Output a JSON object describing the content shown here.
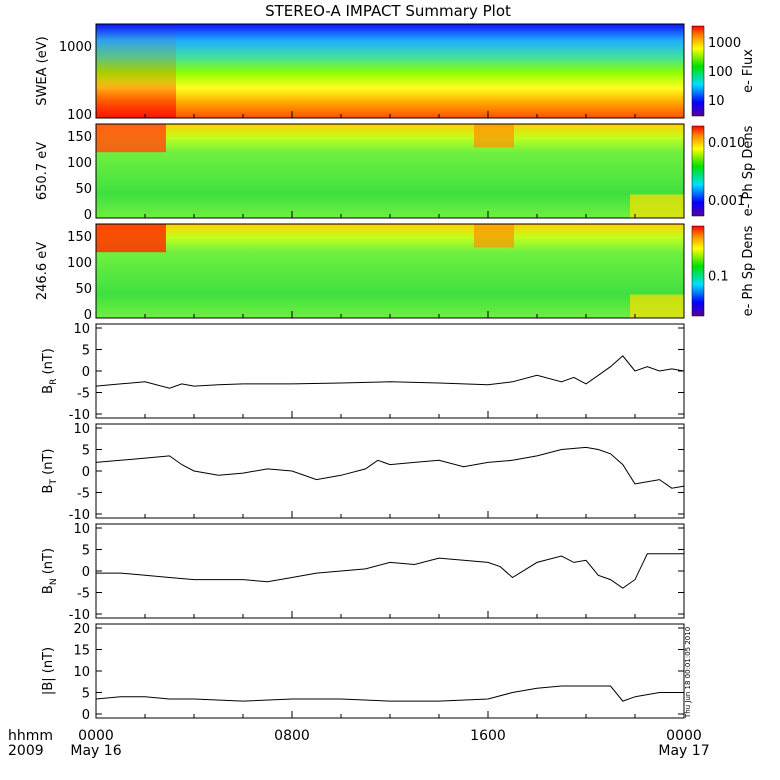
{
  "title": "STEREO-A IMPACT Summary Plot",
  "footer": {
    "time_label": "hhmm",
    "year_label": "2009",
    "x_ticks": [
      "0000",
      "0800",
      "1600",
      "0000"
    ],
    "date_labels": [
      "May 16",
      "May 17"
    ]
  },
  "timestamp": "Thu Jun 18 00:01:05 2010",
  "chart_data": [
    {
      "type": "heatmap",
      "name": "swea",
      "ylabel": "SWEA (eV)",
      "yticks": [
        "1000",
        "100"
      ],
      "colorbar_label": "e- Flux",
      "colorbar_ticks": [
        "1000",
        "100",
        "10"
      ]
    },
    {
      "type": "heatmap",
      "name": "pad650",
      "ylabel": "650.7 eV",
      "yticks": [
        "150",
        "100",
        "50",
        "0"
      ],
      "colorbar_label": "e- Ph Sp Dens",
      "colorbar_ticks": [
        "0.010",
        "0.001"
      ]
    },
    {
      "type": "heatmap",
      "name": "pad246",
      "ylabel": "246.6 eV",
      "yticks": [
        "150",
        "100",
        "50",
        "0"
      ],
      "colorbar_label": "e- Ph Sp Dens",
      "colorbar_ticks": [
        "0.1"
      ]
    },
    {
      "type": "line",
      "name": "br",
      "ylabel_main": "B",
      "ylabel_sub": "R",
      "ylabel_unit": " (nT)",
      "ylim": [
        -10,
        10
      ],
      "yticks": [
        "10",
        "5",
        "0",
        "-5",
        "-10"
      ],
      "x": [
        0,
        1,
        2,
        3,
        3.5,
        4,
        5,
        6,
        8,
        10,
        12,
        14,
        15,
        16,
        17,
        18,
        19,
        19.5,
        20,
        20.5,
        21,
        21.5,
        22,
        22.5,
        23,
        23.5,
        24
      ],
      "y": [
        -3.5,
        -3,
        -2.5,
        -4,
        -3,
        -3.5,
        -3.2,
        -3,
        -3,
        -2.8,
        -2.5,
        -2.8,
        -3,
        -3.2,
        -2.5,
        -1,
        -2.5,
        -1.5,
        -3,
        -1,
        1,
        3.5,
        0,
        1,
        0,
        0.5,
        0
      ]
    },
    {
      "type": "line",
      "name": "bt",
      "ylabel_main": "B",
      "ylabel_sub": "T",
      "ylabel_unit": " (nT)",
      "ylim": [
        -10,
        10
      ],
      "yticks": [
        "10",
        "5",
        "0",
        "-5",
        "-10"
      ],
      "x": [
        0,
        1,
        2,
        3,
        3.5,
        4,
        5,
        6,
        7,
        8,
        9,
        10,
        11,
        11.5,
        12,
        13,
        14,
        15,
        16,
        17,
        18,
        19,
        20,
        20.5,
        21,
        21.5,
        22,
        23,
        23.5,
        24
      ],
      "y": [
        2,
        2.5,
        3,
        3.5,
        1.5,
        0,
        -1,
        -0.5,
        0.5,
        0,
        -2,
        -1,
        0.5,
        2.5,
        1.5,
        2,
        2.5,
        1,
        2,
        2.5,
        3.5,
        5,
        5.5,
        5,
        4,
        1.5,
        -3,
        -2,
        -4,
        -3.5
      ]
    },
    {
      "type": "line",
      "name": "bn",
      "ylabel_main": "B",
      "ylabel_sub": "N",
      "ylabel_unit": " (nT)",
      "ylim": [
        -10,
        10
      ],
      "yticks": [
        "10",
        "5",
        "0",
        "-5",
        "-10"
      ],
      "x": [
        0,
        1,
        2,
        3,
        4,
        5,
        6,
        7,
        8,
        9,
        10,
        11,
        12,
        13,
        14,
        15,
        16,
        16.5,
        17,
        18,
        19,
        19.5,
        20,
        20.5,
        21,
        21.5,
        22,
        22.5,
        23,
        24
      ],
      "y": [
        -0.5,
        -0.5,
        -1,
        -1.5,
        -2,
        -2,
        -2,
        -2.5,
        -1.5,
        -0.5,
        0,
        0.5,
        2,
        1.5,
        3,
        2.5,
        2,
        1,
        -1.5,
        2,
        3.5,
        2,
        2.5,
        -1,
        -2,
        -4,
        -2,
        4,
        4,
        4
      ]
    },
    {
      "type": "line",
      "name": "bmag",
      "ylabel": "|B| (nT)",
      "ylim": [
        0,
        20
      ],
      "yticks": [
        "20",
        "15",
        "10",
        "5",
        "0"
      ],
      "x": [
        0,
        1,
        2,
        3,
        4,
        6,
        8,
        10,
        12,
        14,
        16,
        17,
        18,
        19,
        20,
        21,
        21.5,
        22,
        23,
        24
      ],
      "y": [
        3.5,
        4,
        4,
        3.5,
        3.5,
        3,
        3.5,
        3.5,
        3,
        3,
        3.5,
        5,
        6,
        6.5,
        6.5,
        6.5,
        3,
        4,
        5,
        5
      ]
    }
  ]
}
